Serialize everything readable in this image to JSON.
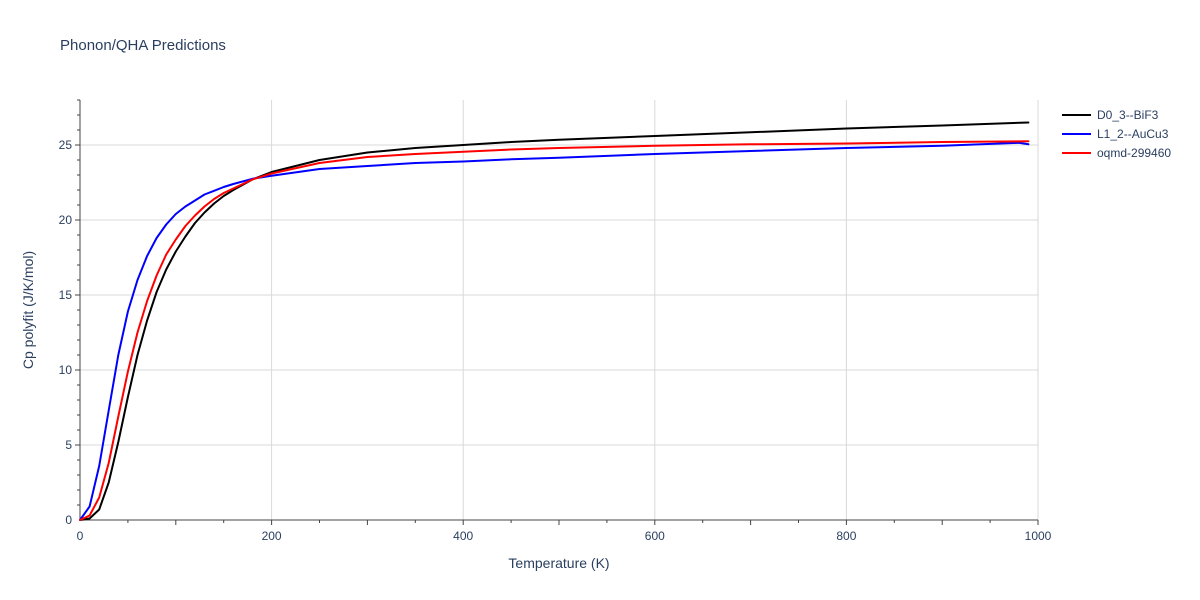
{
  "chart_data": {
    "type": "line",
    "title": "Phonon/QHA Predictions",
    "xlabel": "Temperature (K)",
    "ylabel": "Cp polyfit (J/K/mol)",
    "xlim": [
      0,
      1000
    ],
    "ylim": [
      0,
      28
    ],
    "xticks": [
      0,
      200,
      400,
      600,
      800,
      1000
    ],
    "yticks": [
      0,
      5,
      10,
      15,
      20,
      25
    ],
    "xtick_labels": [
      "0",
      "200",
      "400",
      "600",
      "800",
      "1000"
    ],
    "ytick_labels": [
      "0",
      "5",
      "10",
      "15",
      "20",
      "25"
    ],
    "grid": true,
    "legend_position": "top-right",
    "series": [
      {
        "name": "D0_3--BiF3",
        "color": "#000000",
        "x": [
          0,
          10,
          20,
          30,
          40,
          50,
          60,
          70,
          80,
          90,
          100,
          110,
          120,
          130,
          140,
          150,
          160,
          180,
          200,
          250,
          300,
          350,
          400,
          450,
          500,
          600,
          700,
          800,
          900,
          990
        ],
        "y": [
          0,
          0.1,
          0.7,
          2.5,
          5.2,
          8.2,
          11.0,
          13.3,
          15.2,
          16.7,
          17.9,
          18.9,
          19.8,
          20.5,
          21.1,
          21.6,
          22.0,
          22.7,
          23.2,
          24.0,
          24.5,
          24.8,
          25.0,
          25.2,
          25.35,
          25.6,
          25.85,
          26.1,
          26.3,
          26.5
        ]
      },
      {
        "name": "L1_2--AuCu3",
        "color": "#0000ff",
        "x": [
          0,
          10,
          20,
          30,
          40,
          50,
          60,
          70,
          80,
          90,
          100,
          110,
          120,
          130,
          140,
          150,
          160,
          180,
          200,
          250,
          300,
          350,
          400,
          450,
          500,
          600,
          700,
          800,
          900,
          980,
          990
        ],
        "y": [
          0,
          0.9,
          3.6,
          7.3,
          11.0,
          13.9,
          16.0,
          17.6,
          18.8,
          19.7,
          20.4,
          20.9,
          21.3,
          21.7,
          21.95,
          22.2,
          22.4,
          22.75,
          22.95,
          23.4,
          23.6,
          23.8,
          23.9,
          24.05,
          24.15,
          24.4,
          24.6,
          24.8,
          24.95,
          25.15,
          25.05
        ]
      },
      {
        "name": "oqmd-299460",
        "color": "#ff0000",
        "x": [
          0,
          10,
          20,
          30,
          40,
          50,
          60,
          70,
          80,
          90,
          100,
          110,
          120,
          130,
          140,
          150,
          160,
          180,
          200,
          250,
          300,
          350,
          400,
          450,
          500,
          600,
          700,
          800,
          900,
          990
        ],
        "y": [
          0,
          0.3,
          1.5,
          3.8,
          6.9,
          9.9,
          12.5,
          14.6,
          16.3,
          17.7,
          18.7,
          19.6,
          20.3,
          20.9,
          21.4,
          21.8,
          22.1,
          22.7,
          23.1,
          23.8,
          24.2,
          24.4,
          24.55,
          24.7,
          24.8,
          24.95,
          25.05,
          25.1,
          25.2,
          25.25
        ]
      }
    ]
  }
}
